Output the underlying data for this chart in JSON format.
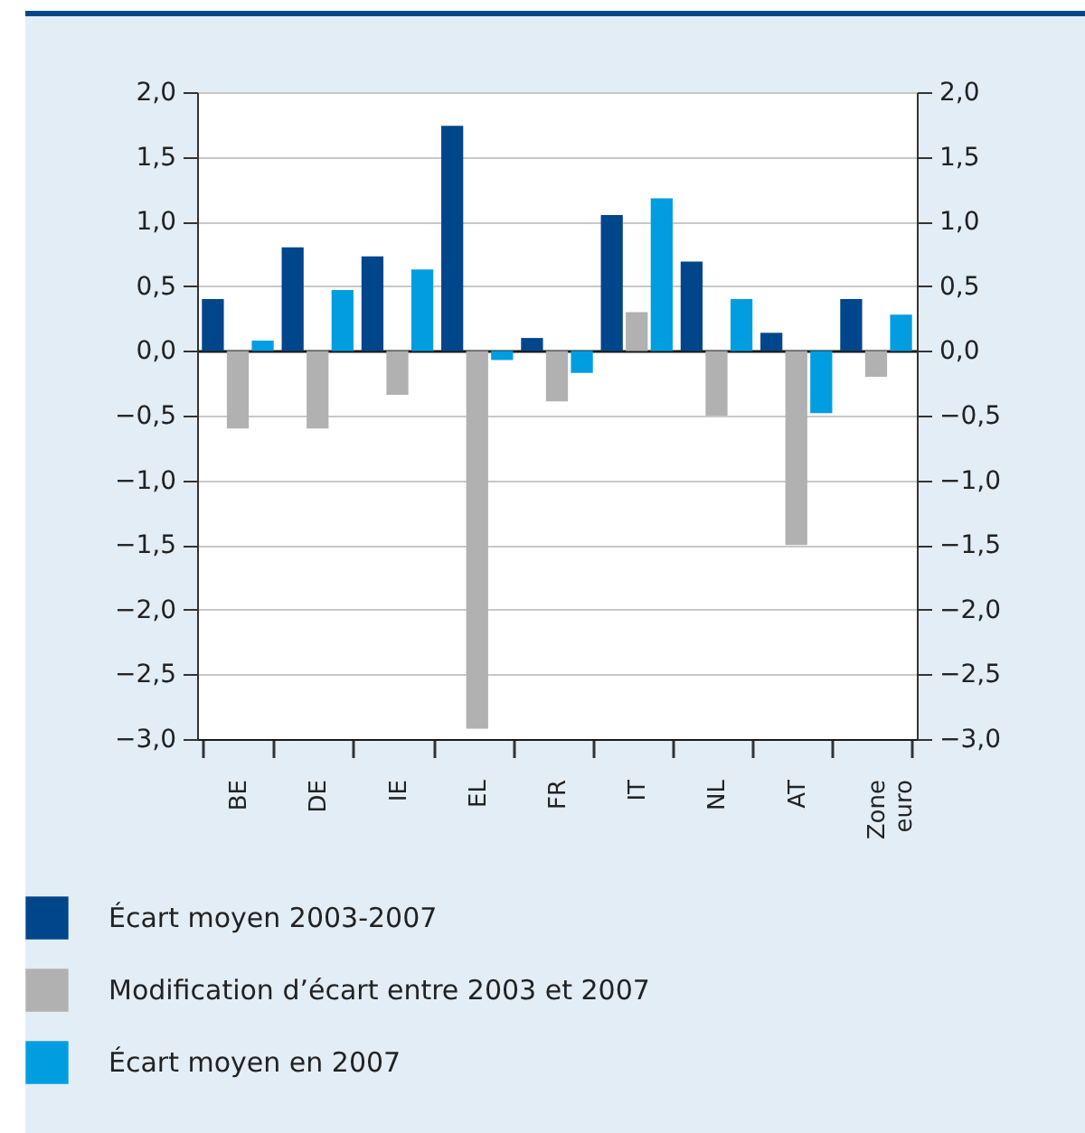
{
  "chart_data": {
    "type": "bar",
    "categories": [
      "BE",
      "DE",
      "IE",
      "EL",
      "FR",
      "IT",
      "NL",
      "AT",
      "Zone euro"
    ],
    "series": [
      {
        "name": "Écart moyen 2003-2007",
        "color": "#00468b",
        "values": [
          0.4,
          0.8,
          0.73,
          1.74,
          0.1,
          1.05,
          0.69,
          0.14,
          0.4
        ]
      },
      {
        "name": "Modification d’écart entre 2003 et 2007",
        "color": "#b1b1b1",
        "values": [
          -0.6,
          -0.6,
          -0.34,
          -2.92,
          -0.39,
          0.3,
          -0.5,
          -1.5,
          -0.2
        ]
      },
      {
        "name": "Écart moyen en 2007",
        "color": "#009ee0",
        "values": [
          0.08,
          0.47,
          0.63,
          -0.07,
          -0.17,
          1.18,
          0.4,
          -0.48,
          0.28
        ]
      }
    ],
    "ylim": [
      -3,
      2
    ],
    "yticks": [
      {
        "value": -3,
        "label": "−3,0"
      },
      {
        "value": -2.5,
        "label": "−2,5"
      },
      {
        "value": -2,
        "label": "−2,0"
      },
      {
        "value": -1.5,
        "label": "−1,5"
      },
      {
        "value": -1,
        "label": "−1,0"
      },
      {
        "value": -0.5,
        "label": "−0,5"
      },
      {
        "value": 0,
        "label": "0,0"
      },
      {
        "value": 0.5,
        "label": "0,5"
      },
      {
        "value": 1,
        "label": "1,0"
      },
      {
        "value": 1.5,
        "label": "1,5"
      },
      {
        "value": 2,
        "label": "2,0"
      }
    ],
    "y2lim": [
      -3,
      2
    ],
    "y2ticks": [
      {
        "value": -3,
        "label": "−3,0"
      },
      {
        "value": -2.5,
        "label": "−2,5"
      },
      {
        "value": -2,
        "label": "−2,0"
      },
      {
        "value": -1.5,
        "label": "−1,5"
      },
      {
        "value": -1,
        "label": "−1,0"
      },
      {
        "value": -0.5,
        "label": "−0,5"
      },
      {
        "value": 0,
        "label": "0,0"
      },
      {
        "value": 0.5,
        "label": "0,5"
      },
      {
        "value": 1,
        "label": "1,0"
      },
      {
        "value": 1.5,
        "label": "1,5"
      },
      {
        "value": 2,
        "label": "2,0"
      }
    ],
    "grid": "y",
    "legend": "bottom"
  }
}
